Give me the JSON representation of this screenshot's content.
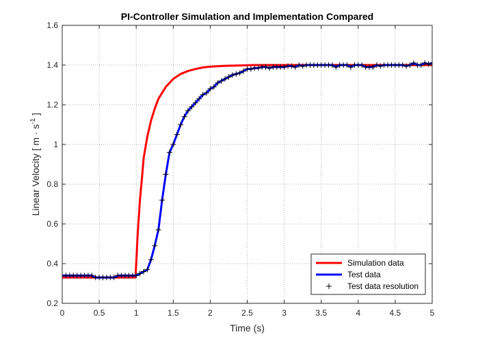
{
  "chart_data": {
    "type": "line",
    "title": "PI-Controller Simulation and Implementation Compared",
    "xlabel": "Time (s)",
    "ylabel": {
      "prefix": "Linear Velocity [ m · s",
      "superscript": "-1",
      "suffix": " ]"
    },
    "xlim": [
      0,
      5
    ],
    "ylim": [
      0.2,
      1.6
    ],
    "xticks": [
      0,
      0.5,
      1,
      1.5,
      2,
      2.5,
      3,
      3.5,
      4,
      4.5,
      5
    ],
    "yticks": [
      0.2,
      0.4,
      0.6,
      0.8,
      1.0,
      1.2,
      1.4,
      1.6
    ],
    "xtick_labels": [
      "0",
      "0.5",
      "1",
      "1.5",
      "2",
      "2.5",
      "3",
      "3.5",
      "4",
      "4.5",
      "5"
    ],
    "ytick_labels": [
      "0.2",
      "0.4",
      "0.6",
      "0.8",
      "1",
      "1.2",
      "1.4",
      "1.6"
    ],
    "grid": true,
    "legend_position": "bottom-right",
    "series": [
      {
        "name": "Simulation data",
        "color": "#ff0000",
        "style": "line",
        "x": [
          0,
          0.5,
          0.99,
          1.0,
          1.02,
          1.05,
          1.08,
          1.1,
          1.15,
          1.2,
          1.25,
          1.3,
          1.4,
          1.5,
          1.6,
          1.7,
          1.8,
          1.9,
          2.0,
          2.2,
          2.4,
          2.6,
          3.0,
          3.5,
          4.0,
          4.5,
          5.0
        ],
        "y": [
          0.33,
          0.33,
          0.33,
          0.4,
          0.55,
          0.72,
          0.84,
          0.93,
          1.04,
          1.12,
          1.18,
          1.23,
          1.29,
          1.33,
          1.355,
          1.37,
          1.38,
          1.388,
          1.392,
          1.396,
          1.398,
          1.4,
          1.4,
          1.4,
          1.4,
          1.4,
          1.4
        ]
      },
      {
        "name": "Test data",
        "color": "#0000ff",
        "style": "line",
        "x": [
          0,
          0.05,
          0.1,
          0.15,
          0.2,
          0.25,
          0.3,
          0.35,
          0.4,
          0.45,
          0.5,
          0.55,
          0.6,
          0.65,
          0.7,
          0.75,
          0.8,
          0.85,
          0.9,
          0.95,
          1.0,
          1.05,
          1.1,
          1.15,
          1.2,
          1.25,
          1.3,
          1.35,
          1.4,
          1.45,
          1.5,
          1.55,
          1.6,
          1.65,
          1.7,
          1.75,
          1.8,
          1.85,
          1.9,
          1.95,
          2.0,
          2.05,
          2.1,
          2.15,
          2.2,
          2.25,
          2.3,
          2.35,
          2.4,
          2.45,
          2.5,
          2.55,
          2.6,
          2.65,
          2.7,
          2.75,
          2.8,
          2.85,
          2.9,
          2.95,
          3.0,
          3.05,
          3.1,
          3.15,
          3.2,
          3.25,
          3.3,
          3.35,
          3.4,
          3.45,
          3.5,
          3.55,
          3.6,
          3.65,
          3.7,
          3.75,
          3.8,
          3.85,
          3.9,
          3.95,
          4.0,
          4.05,
          4.1,
          4.15,
          4.2,
          4.25,
          4.3,
          4.35,
          4.4,
          4.45,
          4.5,
          4.55,
          4.6,
          4.65,
          4.7,
          4.75,
          4.8,
          4.85,
          4.9,
          4.95,
          5.0
        ],
        "y": [
          0.34,
          0.34,
          0.34,
          0.34,
          0.34,
          0.34,
          0.34,
          0.34,
          0.34,
          0.33,
          0.33,
          0.33,
          0.33,
          0.33,
          0.33,
          0.34,
          0.34,
          0.34,
          0.34,
          0.34,
          0.34,
          0.35,
          0.36,
          0.37,
          0.42,
          0.49,
          0.57,
          0.72,
          0.85,
          0.96,
          1.0,
          1.05,
          1.1,
          1.14,
          1.17,
          1.19,
          1.21,
          1.23,
          1.25,
          1.26,
          1.28,
          1.29,
          1.31,
          1.32,
          1.33,
          1.34,
          1.35,
          1.355,
          1.36,
          1.37,
          1.38,
          1.38,
          1.385,
          1.385,
          1.39,
          1.39,
          1.385,
          1.39,
          1.39,
          1.39,
          1.39,
          1.395,
          1.395,
          1.39,
          1.4,
          1.395,
          1.4,
          1.4,
          1.4,
          1.4,
          1.4,
          1.4,
          1.4,
          1.4,
          1.39,
          1.4,
          1.4,
          1.4,
          1.39,
          1.4,
          1.4,
          1.4,
          1.39,
          1.39,
          1.39,
          1.4,
          1.395,
          1.4,
          1.4,
          1.4,
          1.4,
          1.4,
          1.4,
          1.395,
          1.4,
          1.41,
          1.4,
          1.4,
          1.41,
          1.405,
          1.41
        ]
      },
      {
        "name": "Test data resolution",
        "color": "#000000",
        "style": "marker-plus",
        "x": [
          0,
          0.05,
          0.1,
          0.15,
          0.2,
          0.25,
          0.3,
          0.35,
          0.4,
          0.45,
          0.5,
          0.55,
          0.6,
          0.65,
          0.7,
          0.75,
          0.8,
          0.85,
          0.9,
          0.95,
          1.0,
          1.05,
          1.1,
          1.15,
          1.2,
          1.25,
          1.3,
          1.35,
          1.4,
          1.45,
          1.5,
          1.55,
          1.6,
          1.65,
          1.7,
          1.75,
          1.8,
          1.85,
          1.9,
          1.95,
          2.0,
          2.05,
          2.1,
          2.15,
          2.2,
          2.25,
          2.3,
          2.35,
          2.4,
          2.45,
          2.5,
          2.55,
          2.6,
          2.65,
          2.7,
          2.75,
          2.8,
          2.85,
          2.9,
          2.95,
          3.0,
          3.05,
          3.1,
          3.15,
          3.2,
          3.25,
          3.3,
          3.35,
          3.4,
          3.45,
          3.5,
          3.55,
          3.6,
          3.65,
          3.7,
          3.75,
          3.8,
          3.85,
          3.9,
          3.95,
          4.0,
          4.05,
          4.1,
          4.15,
          4.2,
          4.25,
          4.3,
          4.35,
          4.4,
          4.45,
          4.5,
          4.55,
          4.6,
          4.65,
          4.7,
          4.75,
          4.8,
          4.85,
          4.9,
          4.95,
          5.0
        ],
        "y": [
          0.34,
          0.34,
          0.34,
          0.34,
          0.34,
          0.34,
          0.34,
          0.34,
          0.34,
          0.33,
          0.33,
          0.33,
          0.33,
          0.33,
          0.33,
          0.34,
          0.34,
          0.34,
          0.34,
          0.34,
          0.34,
          0.35,
          0.36,
          0.37,
          0.42,
          0.49,
          0.57,
          0.72,
          0.85,
          0.96,
          1.0,
          1.05,
          1.1,
          1.14,
          1.17,
          1.19,
          1.21,
          1.23,
          1.25,
          1.26,
          1.28,
          1.29,
          1.31,
          1.32,
          1.33,
          1.34,
          1.35,
          1.355,
          1.36,
          1.37,
          1.38,
          1.38,
          1.385,
          1.385,
          1.39,
          1.39,
          1.385,
          1.39,
          1.39,
          1.39,
          1.39,
          1.395,
          1.395,
          1.39,
          1.4,
          1.395,
          1.4,
          1.4,
          1.4,
          1.4,
          1.4,
          1.4,
          1.4,
          1.4,
          1.39,
          1.4,
          1.4,
          1.4,
          1.39,
          1.4,
          1.4,
          1.4,
          1.39,
          1.39,
          1.39,
          1.4,
          1.395,
          1.4,
          1.4,
          1.4,
          1.4,
          1.4,
          1.4,
          1.395,
          1.4,
          1.41,
          1.4,
          1.4,
          1.41,
          1.405,
          1.41
        ]
      }
    ]
  }
}
